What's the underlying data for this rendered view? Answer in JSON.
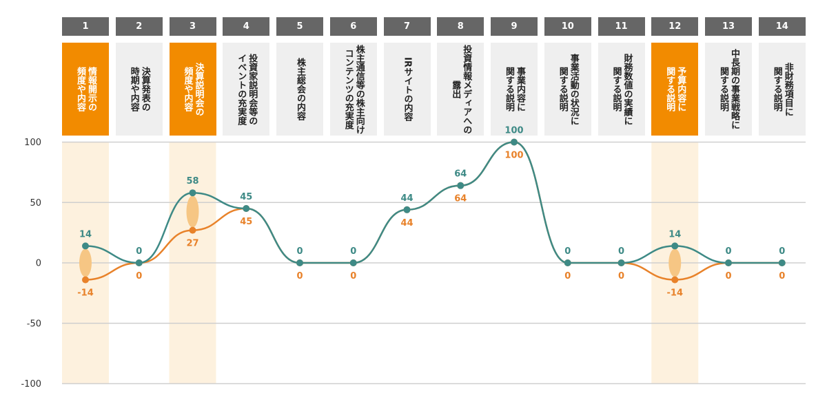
{
  "chart_data": {
    "type": "line",
    "category_numbers": [
      "1",
      "2",
      "3",
      "4",
      "5",
      "6",
      "7",
      "8",
      "9",
      "10",
      "11",
      "12",
      "13",
      "14"
    ],
    "category_labels": [
      [
        "情報開示の",
        "頻度や内容"
      ],
      [
        "決算発表の",
        "時期や内容"
      ],
      [
        "決算説明会の",
        "頻度や内容"
      ],
      [
        "投資家説明会等の",
        "イベントの充実度"
      ],
      [
        "株主総会の内容"
      ],
      [
        "株主通信等の株主向け",
        "コンテンツの充実度"
      ],
      [
        "IRサイトの内容"
      ],
      [
        "投資情報メディアへの",
        "露出"
      ],
      [
        "事業内容に",
        "関する説明"
      ],
      [
        "事業活動の状況に",
        "関する説明"
      ],
      [
        "財務数値の実績に",
        "関する説明"
      ],
      [
        "予算内容に",
        "関する説明"
      ],
      [
        "中長期の事業戦略に",
        "関する説明"
      ],
      [
        "非財務項目に",
        "関する説明"
      ]
    ],
    "highlighted_categories": [
      1,
      3,
      12
    ],
    "series": [
      {
        "values": [
          14,
          0,
          58,
          45,
          0,
          0,
          44,
          64,
          100,
          0,
          0,
          14,
          0,
          0
        ],
        "color": "#3e8a86"
      },
      {
        "values": [
          -14,
          0,
          27,
          45,
          0,
          0,
          44,
          64,
          100,
          0,
          0,
          -14,
          0,
          0
        ],
        "color": "#e8822a"
      }
    ],
    "ylim": [
      -100,
      100
    ],
    "yticks": [
      100,
      50,
      0,
      -50,
      -100
    ],
    "grid": true,
    "legend": false
  },
  "colors": {
    "number_box": "#666666",
    "label_box": "#efefef",
    "label_box_highlight": "#f28b00",
    "highlight_band": "#fdf1de",
    "gap_marker": "#f6c684",
    "gridline": "#cfcfcf"
  }
}
